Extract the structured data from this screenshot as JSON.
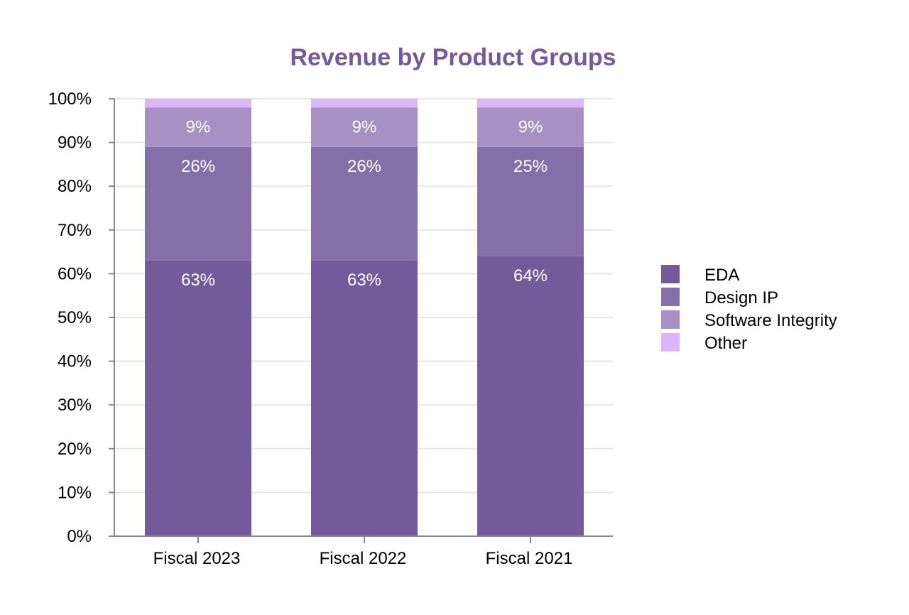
{
  "chart_data": {
    "type": "bar",
    "stacked": true,
    "percent_stacked": true,
    "title": "Revenue by Product Groups",
    "xlabel": "",
    "ylabel": "",
    "categories": [
      "Fiscal 2023",
      "Fiscal 2022",
      "Fiscal 2021"
    ],
    "ylim": [
      0,
      100
    ],
    "yticks": [
      0,
      10,
      20,
      30,
      40,
      50,
      60,
      70,
      80,
      90,
      100
    ],
    "ytick_labels": [
      "0%",
      "10%",
      "20%",
      "30%",
      "40%",
      "50%",
      "60%",
      "70%",
      "80%",
      "90%",
      "100%"
    ],
    "grid": true,
    "legend_position": "right",
    "series": [
      {
        "name": "EDA",
        "values": [
          63,
          63,
          64
        ],
        "labels": [
          "63%",
          "63%",
          "64%"
        ],
        "color": "#725a9b"
      },
      {
        "name": "Design IP",
        "values": [
          26,
          26,
          25
        ],
        "labels": [
          "26%",
          "26%",
          "25%"
        ],
        "color": "#846fa8"
      },
      {
        "name": "Software Integrity",
        "values": [
          9,
          9,
          9
        ],
        "labels": [
          "9%",
          "9%",
          "9%"
        ],
        "color": "#a690c4"
      },
      {
        "name": "Other",
        "values": [
          2,
          2,
          2
        ],
        "labels": [],
        "color": "#dbb6f9"
      }
    ],
    "title_color": "#725a9b",
    "grid_color": "#e5e5e5",
    "axis_color": "#888888"
  }
}
